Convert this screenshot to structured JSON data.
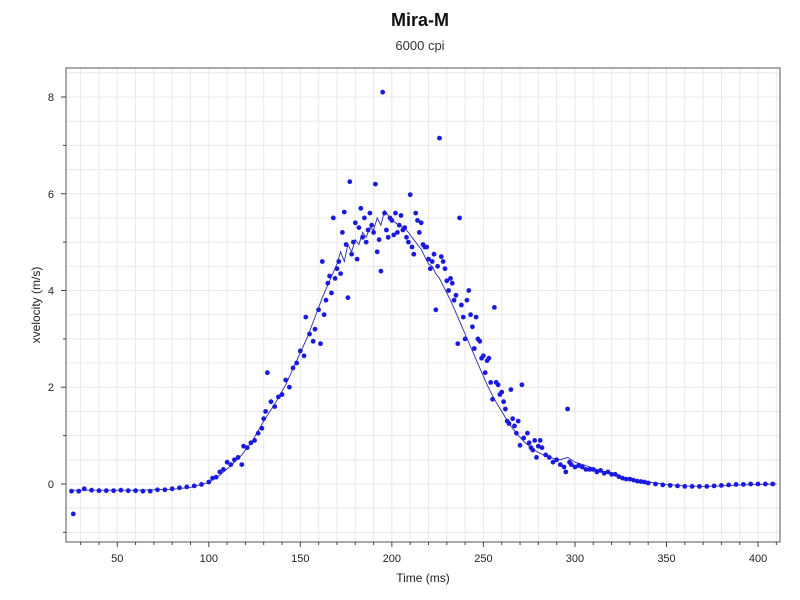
{
  "chart_data": {
    "type": "scatter",
    "title": "Mira-M",
    "subtitle": "6000 cpi",
    "xlabel": "Time (ms)",
    "ylabel": "xvelocity (m/s)",
    "xlim": [
      22,
      412
    ],
    "ylim": [
      -1.2,
      8.6
    ],
    "x_ticks": [
      50,
      100,
      150,
      200,
      250,
      300,
      350,
      400
    ],
    "y_ticks": [
      0,
      2,
      4,
      6,
      8
    ],
    "grid": true,
    "colors": {
      "points": "#1a1adf",
      "line": "#2a2ab0",
      "grid": "#e8e8e8",
      "axis": "#444444"
    },
    "series": [
      {
        "type": "scatter",
        "points": [
          [
            25,
            -0.15
          ],
          [
            26,
            -0.62
          ],
          [
            29,
            -0.15
          ],
          [
            32,
            -0.1
          ],
          [
            36,
            -0.13
          ],
          [
            40,
            -0.14
          ],
          [
            44,
            -0.14
          ],
          [
            48,
            -0.14
          ],
          [
            52,
            -0.13
          ],
          [
            56,
            -0.14
          ],
          [
            60,
            -0.14
          ],
          [
            64,
            -0.15
          ],
          [
            68,
            -0.15
          ],
          [
            72,
            -0.12
          ],
          [
            76,
            -0.12
          ],
          [
            80,
            -0.1
          ],
          [
            84,
            -0.08
          ],
          [
            88,
            -0.06
          ],
          [
            92,
            -0.04
          ],
          [
            96,
            -0.01
          ],
          [
            100,
            0.04
          ],
          [
            102,
            0.12
          ],
          [
            104,
            0.14
          ],
          [
            106,
            0.25
          ],
          [
            108,
            0.3
          ],
          [
            110,
            0.45
          ],
          [
            112,
            0.4
          ],
          [
            114,
            0.5
          ],
          [
            116,
            0.55
          ],
          [
            118,
            0.4
          ],
          [
            119,
            0.78
          ],
          [
            121,
            0.75
          ],
          [
            123,
            0.85
          ],
          [
            125,
            0.9
          ],
          [
            127,
            1.05
          ],
          [
            129,
            1.15
          ],
          [
            130,
            1.35
          ],
          [
            131,
            1.5
          ],
          [
            132,
            2.3
          ],
          [
            134,
            1.7
          ],
          [
            136,
            1.6
          ],
          [
            138,
            1.8
          ],
          [
            140,
            1.85
          ],
          [
            142,
            2.15
          ],
          [
            144,
            2.0
          ],
          [
            146,
            2.4
          ],
          [
            148,
            2.5
          ],
          [
            150,
            2.75
          ],
          [
            152,
            2.65
          ],
          [
            153,
            3.45
          ],
          [
            155,
            3.1
          ],
          [
            157,
            2.95
          ],
          [
            158,
            3.2
          ],
          [
            160,
            3.6
          ],
          [
            161,
            2.9
          ],
          [
            162,
            4.6
          ],
          [
            163,
            3.5
          ],
          [
            164,
            3.8
          ],
          [
            165,
            4.15
          ],
          [
            166,
            4.3
          ],
          [
            167,
            3.95
          ],
          [
            168,
            5.5
          ],
          [
            169,
            4.25
          ],
          [
            170,
            4.45
          ],
          [
            171,
            4.6
          ],
          [
            172,
            4.35
          ],
          [
            173,
            5.2
          ],
          [
            174,
            5.62
          ],
          [
            175,
            4.95
          ],
          [
            176,
            3.85
          ],
          [
            177,
            6.25
          ],
          [
            178,
            4.75
          ],
          [
            179,
            5.0
          ],
          [
            180,
            5.4
          ],
          [
            181,
            4.65
          ],
          [
            182,
            5.3
          ],
          [
            183,
            5.7
          ],
          [
            184,
            5.1
          ],
          [
            185,
            5.5
          ],
          [
            186,
            5.0
          ],
          [
            187,
            5.25
          ],
          [
            188,
            5.6
          ],
          [
            189,
            5.35
          ],
          [
            190,
            5.2
          ],
          [
            191,
            6.2
          ],
          [
            192,
            4.8
          ],
          [
            193,
            5.05
          ],
          [
            194,
            4.4
          ],
          [
            195,
            8.1
          ],
          [
            196,
            5.6
          ],
          [
            197,
            5.25
          ],
          [
            198,
            5.1
          ],
          [
            199,
            5.5
          ],
          [
            200,
            5.45
          ],
          [
            201,
            5.15
          ],
          [
            202,
            5.6
          ],
          [
            203,
            5.2
          ],
          [
            204,
            5.35
          ],
          [
            205,
            5.55
          ],
          [
            206,
            5.25
          ],
          [
            207,
            5.3
          ],
          [
            208,
            5.1
          ],
          [
            209,
            5.0
          ],
          [
            210,
            5.98
          ],
          [
            211,
            4.9
          ],
          [
            212,
            4.75
          ],
          [
            213,
            5.6
          ],
          [
            214,
            5.45
          ],
          [
            215,
            5.2
          ],
          [
            216,
            5.4
          ],
          [
            217,
            4.95
          ],
          [
            218,
            4.9
          ],
          [
            219,
            4.9
          ],
          [
            220,
            4.65
          ],
          [
            221,
            4.45
          ],
          [
            222,
            4.6
          ],
          [
            223,
            4.75
          ],
          [
            224,
            3.6
          ],
          [
            225,
            4.5
          ],
          [
            226,
            7.15
          ],
          [
            227,
            4.7
          ],
          [
            228,
            4.6
          ],
          [
            229,
            4.45
          ],
          [
            230,
            4.2
          ],
          [
            231,
            4.0
          ],
          [
            232,
            4.25
          ],
          [
            233,
            4.15
          ],
          [
            234,
            3.8
          ],
          [
            235,
            3.9
          ],
          [
            236,
            2.9
          ],
          [
            237,
            5.5
          ],
          [
            238,
            3.7
          ],
          [
            239,
            3.45
          ],
          [
            240,
            3.0
          ],
          [
            241,
            3.8
          ],
          [
            242,
            4.0
          ],
          [
            243,
            3.5
          ],
          [
            244,
            3.25
          ],
          [
            245,
            2.8
          ],
          [
            246,
            3.45
          ],
          [
            247,
            3.0
          ],
          [
            248,
            2.95
          ],
          [
            249,
            2.6
          ],
          [
            250,
            2.65
          ],
          [
            251,
            2.3
          ],
          [
            252,
            2.55
          ],
          [
            253,
            2.6
          ],
          [
            254,
            2.1
          ],
          [
            255,
            1.75
          ],
          [
            256,
            3.65
          ],
          [
            257,
            2.1
          ],
          [
            258,
            2.05
          ],
          [
            259,
            1.85
          ],
          [
            260,
            1.9
          ],
          [
            261,
            1.7
          ],
          [
            262,
            1.55
          ],
          [
            263,
            1.3
          ],
          [
            264,
            1.25
          ],
          [
            265,
            1.95
          ],
          [
            266,
            1.35
          ],
          [
            267,
            1.2
          ],
          [
            268,
            1.05
          ],
          [
            269,
            1.3
          ],
          [
            270,
            0.8
          ],
          [
            271,
            2.05
          ],
          [
            272,
            0.95
          ],
          [
            274,
            1.05
          ],
          [
            275,
            0.85
          ],
          [
            276,
            0.75
          ],
          [
            277,
            0.7
          ],
          [
            278,
            0.9
          ],
          [
            279,
            0.55
          ],
          [
            280,
            0.78
          ],
          [
            281,
            0.9
          ],
          [
            282,
            0.75
          ],
          [
            284,
            0.6
          ],
          [
            286,
            0.55
          ],
          [
            288,
            0.45
          ],
          [
            290,
            0.5
          ],
          [
            292,
            0.4
          ],
          [
            294,
            0.35
          ],
          [
            295,
            0.25
          ],
          [
            296,
            1.55
          ],
          [
            297,
            0.45
          ],
          [
            298,
            0.4
          ],
          [
            300,
            0.35
          ],
          [
            302,
            0.38
          ],
          [
            304,
            0.35
          ],
          [
            306,
            0.3
          ],
          [
            308,
            0.3
          ],
          [
            310,
            0.3
          ],
          [
            312,
            0.25
          ],
          [
            314,
            0.28
          ],
          [
            316,
            0.22
          ],
          [
            318,
            0.25
          ],
          [
            320,
            0.2
          ],
          [
            322,
            0.2
          ],
          [
            324,
            0.15
          ],
          [
            326,
            0.12
          ],
          [
            328,
            0.1
          ],
          [
            330,
            0.1
          ],
          [
            332,
            0.08
          ],
          [
            334,
            0.06
          ],
          [
            336,
            0.05
          ],
          [
            338,
            0.04
          ],
          [
            340,
            0.02
          ],
          [
            344,
            0.0
          ],
          [
            348,
            -0.02
          ],
          [
            352,
            -0.03
          ],
          [
            356,
            -0.04
          ],
          [
            360,
            -0.05
          ],
          [
            364,
            -0.05
          ],
          [
            368,
            -0.05
          ],
          [
            372,
            -0.05
          ],
          [
            376,
            -0.04
          ],
          [
            380,
            -0.03
          ],
          [
            384,
            -0.02
          ],
          [
            388,
            -0.01
          ],
          [
            392,
            -0.01
          ],
          [
            396,
            0.0
          ],
          [
            400,
            0.0
          ],
          [
            404,
            0.0
          ],
          [
            408,
            0.0
          ]
        ]
      },
      {
        "type": "line",
        "points": [
          [
            24,
            -0.13
          ],
          [
            40,
            -0.13
          ],
          [
            60,
            -0.13
          ],
          [
            80,
            -0.11
          ],
          [
            90,
            -0.07
          ],
          [
            100,
            0.03
          ],
          [
            106,
            0.18
          ],
          [
            112,
            0.38
          ],
          [
            118,
            0.6
          ],
          [
            124,
            0.9
          ],
          [
            130,
            1.3
          ],
          [
            136,
            1.65
          ],
          [
            142,
            2.05
          ],
          [
            148,
            2.55
          ],
          [
            154,
            3.05
          ],
          [
            158,
            3.45
          ],
          [
            162,
            3.85
          ],
          [
            166,
            4.2
          ],
          [
            170,
            4.55
          ],
          [
            172,
            4.8
          ],
          [
            174,
            4.6
          ],
          [
            176,
            4.95
          ],
          [
            178,
            4.8
          ],
          [
            180,
            5.05
          ],
          [
            182,
            4.95
          ],
          [
            184,
            5.2
          ],
          [
            186,
            5.1
          ],
          [
            188,
            5.3
          ],
          [
            190,
            5.25
          ],
          [
            192,
            5.5
          ],
          [
            194,
            5.35
          ],
          [
            196,
            5.65
          ],
          [
            198,
            5.55
          ],
          [
            200,
            5.45
          ],
          [
            202,
            5.4
          ],
          [
            204,
            5.35
          ],
          [
            206,
            5.3
          ],
          [
            208,
            5.25
          ],
          [
            210,
            5.15
          ],
          [
            212,
            5.05
          ],
          [
            214,
            4.95
          ],
          [
            216,
            4.85
          ],
          [
            218,
            4.7
          ],
          [
            220,
            4.55
          ],
          [
            222,
            4.5
          ],
          [
            224,
            4.35
          ],
          [
            226,
            4.25
          ],
          [
            228,
            4.1
          ],
          [
            230,
            3.95
          ],
          [
            232,
            3.8
          ],
          [
            236,
            3.45
          ],
          [
            240,
            3.1
          ],
          [
            244,
            2.75
          ],
          [
            248,
            2.4
          ],
          [
            252,
            2.05
          ],
          [
            256,
            1.75
          ],
          [
            260,
            1.5
          ],
          [
            264,
            1.25
          ],
          [
            268,
            1.05
          ],
          [
            272,
            0.88
          ],
          [
            276,
            0.75
          ],
          [
            280,
            0.65
          ],
          [
            284,
            0.58
          ],
          [
            288,
            0.53
          ],
          [
            292,
            0.5
          ],
          [
            296,
            0.55
          ],
          [
            300,
            0.45
          ],
          [
            306,
            0.38
          ],
          [
            312,
            0.3
          ],
          [
            318,
            0.22
          ],
          [
            324,
            0.15
          ],
          [
            330,
            0.1
          ],
          [
            336,
            0.06
          ],
          [
            342,
            0.03
          ],
          [
            350,
            -0.01
          ],
          [
            360,
            -0.04
          ],
          [
            370,
            -0.05
          ],
          [
            380,
            -0.04
          ],
          [
            390,
            -0.02
          ],
          [
            400,
            -0.01
          ],
          [
            410,
            0.0
          ]
        ]
      }
    ]
  }
}
